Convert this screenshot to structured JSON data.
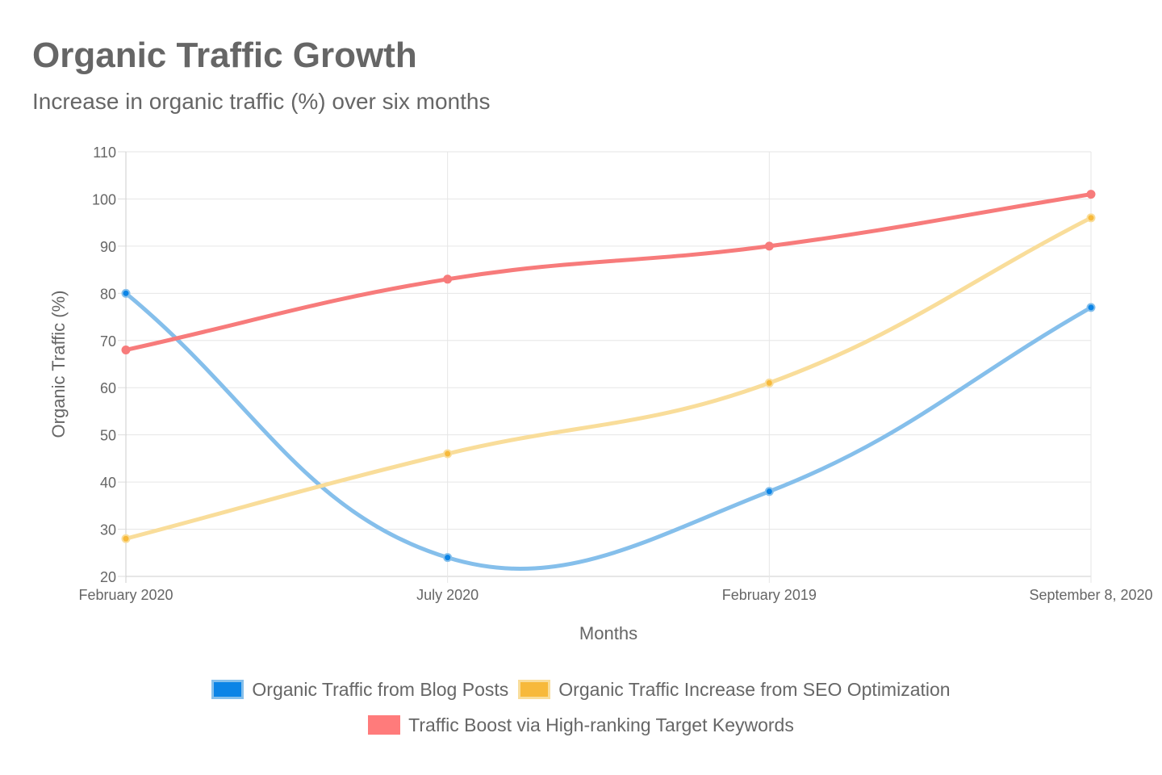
{
  "chart_data": {
    "type": "line",
    "title": "Organic Traffic Growth",
    "subtitle": "Increase in organic traffic (%) over six months",
    "xlabel": "Months",
    "ylabel": "Organic Traffic (%)",
    "categories": [
      "February 2020",
      "July 2020",
      "February 2019",
      "September 8, 2020"
    ],
    "ylim": [
      20,
      110
    ],
    "yticks": [
      20,
      30,
      40,
      50,
      60,
      70,
      80,
      90,
      100,
      110
    ],
    "grid": true,
    "legend_position": "bottom",
    "series": [
      {
        "name": "Organic Traffic from Blog Posts",
        "values": [
          80,
          24,
          38,
          77
        ],
        "line_color": "#85bfeb",
        "point_color": "#0b84e6",
        "swatch_color": "#0b84e6",
        "swatch_border": "#85bfeb"
      },
      {
        "name": "Organic Traffic Increase from SEO Optimization",
        "values": [
          28,
          46,
          61,
          96
        ],
        "line_color": "#f9dd9a",
        "point_color": "#f7b93b",
        "swatch_color": "#f7b93b",
        "swatch_border": "#f9dd9a"
      },
      {
        "name": "Traffic Boost via High-ranking Target Keywords",
        "values": [
          68,
          83,
          90,
          101
        ],
        "line_color": "#f77b7b",
        "point_color": "#f77b7b",
        "swatch_color": "#ff7b7b",
        "swatch_border": "#ff7b7b"
      }
    ]
  }
}
